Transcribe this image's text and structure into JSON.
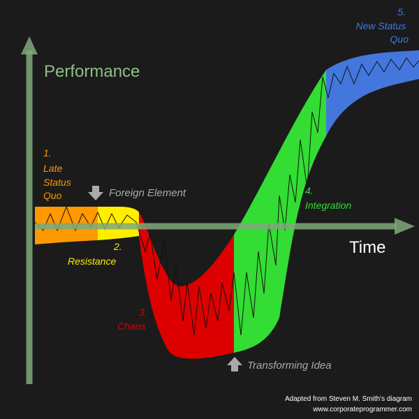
{
  "axes": {
    "y_label": "Performance",
    "x_label": "Time"
  },
  "stages": [
    {
      "number": "1.",
      "lines": [
        "Late",
        "Status",
        "Quo"
      ],
      "color": "#ff9900"
    },
    {
      "number": "2.",
      "lines": [
        "Resistance"
      ],
      "color": "#ffee00"
    },
    {
      "number": "3.",
      "lines": [
        "Chaos"
      ],
      "color": "#dd0000"
    },
    {
      "number": "4.",
      "lines": [
        "Integration"
      ],
      "color": "#33dd33"
    },
    {
      "number": "5.",
      "lines": [
        "New Status",
        "Quo"
      ],
      "color": "#4477dd"
    }
  ],
  "markers": {
    "foreign_element": "Foreign Element",
    "transforming_idea": "Transforming Idea"
  },
  "credits": {
    "line1": "Adapted from Steven M. Smith's diagram",
    "line2": "www.corporateprogrammer.com"
  },
  "colors": {
    "background": "#1b1b1b",
    "axis": "#7fa87a",
    "axis_label": "#8fbf87",
    "marker_text": "#aaaaaa",
    "credit_text": "#ffffff"
  }
}
